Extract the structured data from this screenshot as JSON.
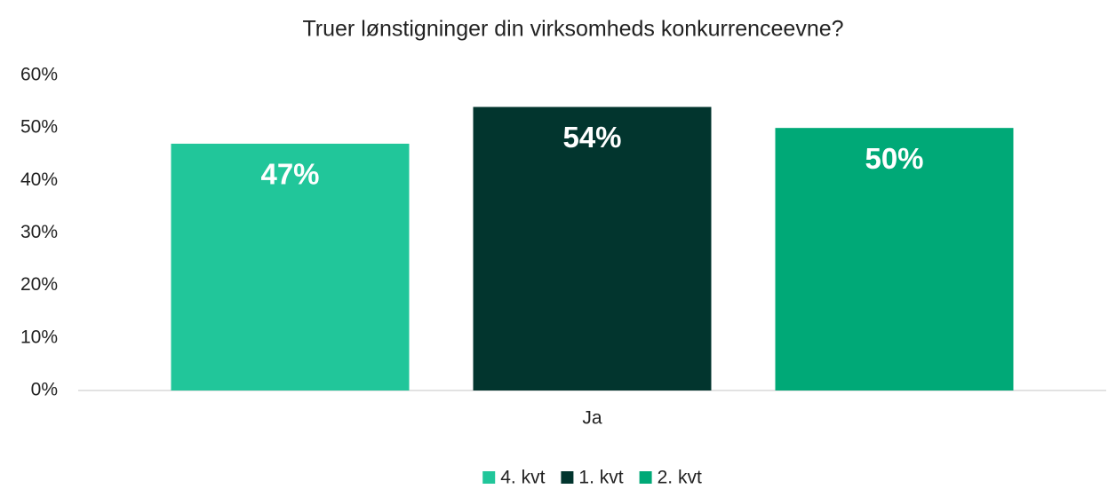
{
  "chart_data": {
    "type": "bar",
    "title": "Truer lønstigninger din virksomheds konkurrenceevne?",
    "categories": [
      "Ja"
    ],
    "series": [
      {
        "name": "4. kvt",
        "color": "#21c69a",
        "values": [
          47
        ],
        "value_labels": [
          "47%"
        ]
      },
      {
        "name": "1. kvt",
        "color": "#02352e",
        "values": [
          54
        ],
        "value_labels": [
          "54%"
        ]
      },
      {
        "name": "2. kvt",
        "color": "#00a977",
        "values": [
          50
        ],
        "value_labels": [
          "50%"
        ]
      }
    ],
    "ylim": [
      0,
      60
    ],
    "yticks": [
      {
        "value": 0,
        "label": "0%"
      },
      {
        "value": 10,
        "label": "10%"
      },
      {
        "value": 20,
        "label": "20%"
      },
      {
        "value": 30,
        "label": "30%"
      },
      {
        "value": 40,
        "label": "40%"
      },
      {
        "value": 50,
        "label": "50%"
      },
      {
        "value": 60,
        "label": "60%"
      }
    ],
    "grid": false,
    "legend": "bottom"
  }
}
